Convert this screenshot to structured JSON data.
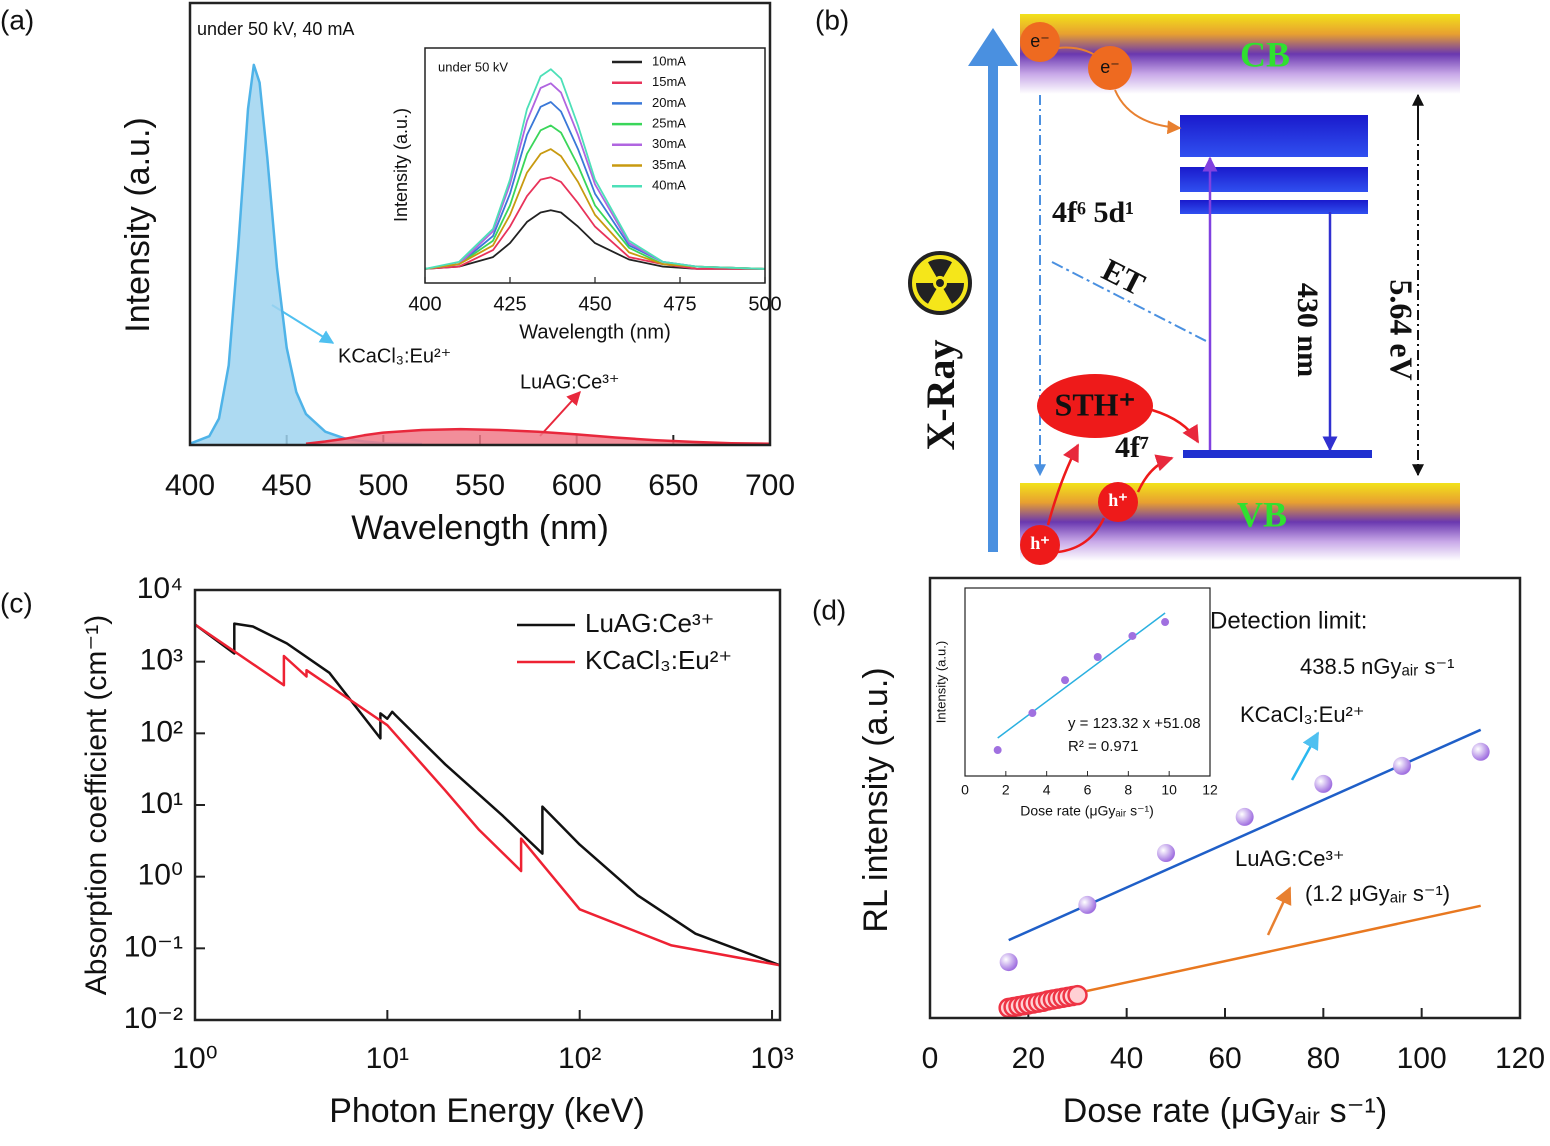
{
  "chart_data": [
    {
      "type": "area",
      "label": "(a)",
      "annotations": [
        "under 50 kV, 40 mA"
      ],
      "xlabel": "Wavelength (nm)",
      "ylabel": "Intensity (a.u.)",
      "xlim": [
        400,
        700
      ],
      "ylim": [
        0,
        100
      ],
      "xticks": [
        400,
        450,
        500,
        550,
        600,
        650,
        700
      ],
      "x": [
        400,
        410,
        415,
        420,
        425,
        430,
        433,
        436,
        440,
        445,
        450,
        455,
        460,
        470,
        480,
        490,
        500,
        520,
        540,
        560,
        580,
        600,
        620,
        640,
        660,
        680,
        700
      ],
      "series": [
        {
          "name": "KCaCl₃:Eu²⁺",
          "color": "#4fb3e8",
          "fill_color": "#9fd3f0",
          "values": [
            0.3,
            2,
            6,
            18,
            45,
            76,
            86,
            82,
            65,
            40,
            22,
            12,
            7,
            3,
            1.5,
            0.8,
            0.4,
            0.2,
            null,
            null,
            null,
            null,
            null,
            null,
            null,
            null,
            null
          ]
        },
        {
          "name": "LuAG:Ce³⁺",
          "color": "#e8283c",
          "fill_color": "#f07a88",
          "values": [
            null,
            null,
            null,
            null,
            null,
            null,
            null,
            null,
            null,
            null,
            null,
            null,
            0.3,
            0.8,
            1.4,
            2.2,
            2.8,
            3.4,
            3.6,
            3.4,
            3,
            2.4,
            1.7,
            1.1,
            0.7,
            0.4,
            0.3
          ]
        }
      ]
    },
    {
      "type": "line",
      "annotations": [
        "under 50 kV"
      ],
      "xlabel": "Wavelength (nm)",
      "ylabel": "Intensity (a.u.)",
      "xlim": [
        400,
        500
      ],
      "ylim": [
        0,
        100
      ],
      "xticks": [
        400,
        425,
        450,
        475,
        500
      ],
      "legend": "upper right",
      "x": [
        400,
        410,
        420,
        425,
        430,
        434,
        437,
        440,
        445,
        450,
        460,
        470,
        480,
        500
      ],
      "series": [
        {
          "name": "10mA",
          "color": "#222222",
          "values": [
            6,
            7,
            11,
            17,
            26,
            30,
            31,
            30,
            24,
            17,
            10,
            7,
            6,
            6
          ]
        },
        {
          "name": "15mA",
          "color": "#e8335a",
          "values": [
            6,
            7,
            14,
            24,
            37,
            44,
            45,
            43,
            34,
            24,
            11,
            8,
            6,
            6
          ]
        },
        {
          "name": "20mA",
          "color": "#3a78d8",
          "values": [
            6,
            8,
            20,
            38,
            63,
            75,
            77,
            73,
            57,
            38,
            16,
            9,
            7,
            6
          ]
        },
        {
          "name": "25mA",
          "color": "#3ad65a",
          "values": [
            6,
            8,
            18,
            33,
            55,
            65,
            67,
            64,
            50,
            33,
            15,
            8,
            7,
            6
          ]
        },
        {
          "name": "30mA",
          "color": "#b065e0",
          "values": [
            6,
            8,
            22,
            42,
            69,
            83,
            85,
            81,
            63,
            42,
            17,
            9,
            7,
            6
          ]
        },
        {
          "name": "35mA",
          "color": "#c89a10",
          "values": [
            6,
            8,
            16,
            29,
            47,
            55,
            57,
            54,
            43,
            29,
            13,
            8,
            7,
            6
          ]
        },
        {
          "name": "40mA",
          "color": "#4de0b8",
          "values": [
            6,
            9,
            23,
            44,
            74,
            88,
            91,
            87,
            67,
            44,
            18,
            9,
            7,
            6
          ]
        }
      ]
    },
    {
      "type": "line",
      "label": "(c)",
      "xlabel": "Photon Energy (keV)",
      "ylabel": "Absorption coefficient (cm⁻¹)",
      "xscale": "log",
      "yscale": "log",
      "xlim": [
        1,
        1100
      ],
      "ylim": [
        0.01,
        10000
      ],
      "legend": "upper right",
      "xticks": [
        {
          "value": 1,
          "label": "10⁰"
        },
        {
          "value": 10,
          "label": "10¹"
        },
        {
          "value": 100,
          "label": "10²"
        },
        {
          "value": 1000,
          "label": "10³"
        }
      ],
      "yticks": [
        {
          "value": 0.01,
          "label": "10⁻²"
        },
        {
          "value": 0.1,
          "label": "10⁻¹"
        },
        {
          "value": 1,
          "label": "10⁰"
        },
        {
          "value": 10,
          "label": "10¹"
        },
        {
          "value": 100,
          "label": "10²"
        },
        {
          "value": 1000,
          "label": "10³"
        },
        {
          "value": 10000,
          "label": "10⁴"
        }
      ],
      "series": [
        {
          "name": "LuAG:Ce³⁺",
          "color": "#111111",
          "x": [
            1,
            1.6,
            1.6,
            2,
            3,
            5,
            9.2,
            9.2,
            10,
            10.6,
            11,
            20,
            40,
            64,
            64,
            100,
            200,
            400,
            1100
          ],
          "values": [
            3300,
            1300,
            3400,
            3100,
            1800,
            700,
            85,
            190,
            160,
            200,
            180,
            37,
            7,
            2.1,
            9.5,
            2.8,
            0.55,
            0.16,
            0.058
          ]
        },
        {
          "name": "KCaCl₃:Eu²⁺",
          "color": "#ee2233",
          "x": [
            1,
            2.9,
            2.9,
            3.8,
            3.8,
            10,
            20,
            30,
            49.6,
            49.6,
            100,
            300,
            1100
          ],
          "values": [
            3300,
            470,
            1200,
            620,
            760,
            130,
            16,
            4.5,
            1.2,
            3.4,
            0.35,
            0.11,
            0.058
          ]
        }
      ]
    },
    {
      "type": "scatter",
      "label": "(d)",
      "xlabel": "Dose rate (μGyₐᵢᵣ s⁻¹)",
      "ylabel": "RL intensity (a.u.)",
      "annotations": [
        "Detection limit:",
        "438.5 nGyₐᵢᵣ s⁻¹",
        "(1.2 μGyₐᵢᵣ s⁻¹)"
      ],
      "xlim": [
        0,
        120
      ],
      "ylim": [
        0,
        100
      ],
      "xticks": [
        0,
        20,
        40,
        60,
        80,
        100,
        120
      ],
      "series": [
        {
          "name": "KCaCl₃:Eu²⁺",
          "color": "#a070e0",
          "marker": "sphere",
          "x": [
            16,
            32,
            48,
            64,
            80,
            96,
            112
          ],
          "values": [
            12.7,
            25.7,
            37.5,
            45.7,
            53.2,
            57.3,
            60.5
          ],
          "fit": {
            "x": [
              16,
              112
            ],
            "values": [
              17.7,
              65.5
            ]
          },
          "fit_color": "#1f5fc8"
        },
        {
          "name": "LuAG:Ce³⁺",
          "color": "#ee3344",
          "marker": "ring",
          "x": [
            16,
            17,
            18,
            19,
            20,
            21,
            22,
            23,
            24,
            25,
            26,
            27,
            28,
            29,
            30
          ],
          "values": [
            2.3,
            2.5,
            2.7,
            2.9,
            3.1,
            3.3,
            3.5,
            3.7,
            4.0,
            4.2,
            4.4,
            4.6,
            4.8,
            5.0,
            5.2
          ],
          "fit": {
            "x": [
              16,
              112
            ],
            "values": [
              2.3,
              25.5
            ]
          },
          "fit_color": "#e87820"
        }
      ]
    },
    {
      "type": "scatter",
      "xlabel": "Dose rate (μGyₐᵢᵣ s⁻¹)",
      "ylabel": "Intensity (a.u.)",
      "annotations": [
        "y = 123.32 x +51.08",
        "R² = 0.971"
      ],
      "xlim": [
        0,
        12
      ],
      "ylim": [
        0,
        100
      ],
      "xticks": [
        0,
        2,
        4,
        6,
        8,
        10,
        12
      ],
      "series": [
        {
          "color": "#a070e0",
          "marker": "dot",
          "x": [
            1.6,
            3.3,
            4.9,
            6.5,
            8.2,
            9.8
          ],
          "values": [
            13.8,
            33.5,
            51,
            63.3,
            74.5,
            81.9
          ],
          "fit": {
            "x": [
              1.6,
              9.8
            ],
            "values": [
              20.2,
              86.7
            ]
          },
          "fit_color": "#2ab0e0"
        }
      ]
    }
  ],
  "diagram": {
    "label": "(b)",
    "cb": "CB",
    "vb": "VB",
    "electrons": [
      "e⁻",
      "e⁻"
    ],
    "holes": [
      "h⁺",
      "h⁺"
    ],
    "excited_level": "4f⁶ 5d¹",
    "ground_level": "4f⁷",
    "transfer": "ET",
    "emission": "430 nm",
    "band_gap": "5.64 eV",
    "source": "X-Ray",
    "trap": "STH⁺"
  }
}
